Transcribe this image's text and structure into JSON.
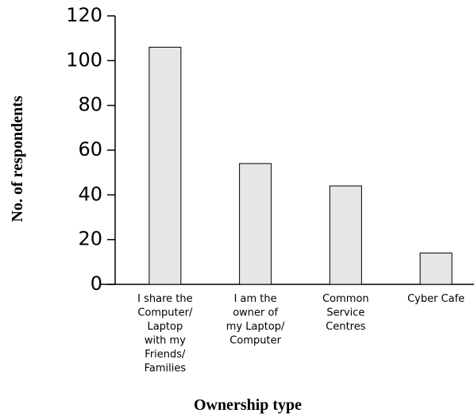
{
  "chart_data": {
    "type": "bar",
    "x_label": "Ownership type",
    "y_label": "No. of respondents",
    "categories": [
      "I share the\nComputer/\nLaptop\nwith my\nFriends/\nFamilies",
      "I am the\nowner of\nmy Laptop/\nComputer",
      "Common\nService\nCentres",
      "Cyber Cafe"
    ],
    "values": [
      106,
      54,
      44,
      14
    ],
    "color": "#e6e6e6",
    "ylim": [
      0,
      120
    ],
    "yticks": [
      0,
      20,
      40,
      60,
      80,
      100,
      120
    ],
    "grid": false
  }
}
